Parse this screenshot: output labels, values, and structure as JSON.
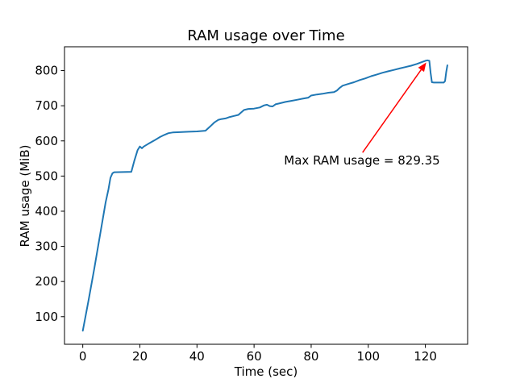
{
  "figure": {
    "background": "#ffffff",
    "spine_color": "#000000",
    "text_color": "#000000"
  },
  "chart_data": {
    "type": "line",
    "title": "RAM usage over Time",
    "xlabel": "Time (sec)",
    "ylabel": "RAM usage (MiB)",
    "xticks": [
      0,
      20,
      40,
      60,
      80,
      100,
      120
    ],
    "yticks": [
      100,
      200,
      300,
      400,
      500,
      600,
      700,
      800
    ],
    "xlim": [
      -6.4,
      134.8
    ],
    "ylim": [
      21.5,
      867.8
    ],
    "grid": false,
    "legend": null,
    "max_value": 829.35,
    "series": [
      {
        "name": "RAM usage",
        "color": "#1f77b4",
        "points": [
          [
            0,
            60
          ],
          [
            2,
            145
          ],
          [
            4,
            235
          ],
          [
            6,
            330
          ],
          [
            8,
            425
          ],
          [
            9,
            462
          ],
          [
            9.7,
            495
          ],
          [
            10.4,
            508
          ],
          [
            11,
            511
          ],
          [
            17,
            512
          ],
          [
            18,
            542
          ],
          [
            19.2,
            574
          ],
          [
            20,
            584
          ],
          [
            20.7,
            579
          ],
          [
            21.4,
            584
          ],
          [
            23,
            592
          ],
          [
            25,
            601
          ],
          [
            27,
            611
          ],
          [
            28.5,
            617
          ],
          [
            30,
            622
          ],
          [
            31.5,
            624
          ],
          [
            34,
            625
          ],
          [
            37,
            626
          ],
          [
            40,
            627
          ],
          [
            43,
            629
          ],
          [
            44.5,
            640
          ],
          [
            46,
            652
          ],
          [
            47.5,
            660
          ],
          [
            48.5,
            662
          ],
          [
            50,
            664
          ],
          [
            51.5,
            668
          ],
          [
            53,
            671
          ],
          [
            54.5,
            674
          ],
          [
            55.5,
            681
          ],
          [
            56.5,
            688
          ],
          [
            58,
            691
          ],
          [
            60,
            692
          ],
          [
            62,
            695
          ],
          [
            63.5,
            701
          ],
          [
            64.5,
            703
          ],
          [
            65.5,
            699
          ],
          [
            66.5,
            698
          ],
          [
            67.5,
            704
          ],
          [
            69,
            707
          ],
          [
            71,
            711
          ],
          [
            73,
            714
          ],
          [
            75,
            717
          ],
          [
            77,
            720
          ],
          [
            79,
            723
          ],
          [
            80,
            729
          ],
          [
            82,
            732
          ],
          [
            84,
            734
          ],
          [
            86,
            737
          ],
          [
            88,
            739
          ],
          [
            89,
            743
          ],
          [
            90,
            751
          ],
          [
            91,
            757
          ],
          [
            93,
            762
          ],
          [
            95,
            767
          ],
          [
            97,
            773
          ],
          [
            99,
            778
          ],
          [
            101,
            784
          ],
          [
            103,
            789
          ],
          [
            105,
            794
          ],
          [
            107,
            798
          ],
          [
            109,
            802
          ],
          [
            111,
            806
          ],
          [
            113,
            810
          ],
          [
            115,
            814
          ],
          [
            117,
            819
          ],
          [
            119,
            825
          ],
          [
            120,
            828
          ],
          [
            120.7,
            829.35
          ],
          [
            121.4,
            828
          ],
          [
            121.8,
            795
          ],
          [
            122.3,
            767
          ],
          [
            123,
            766
          ],
          [
            126.4,
            766
          ],
          [
            126.9,
            770
          ],
          [
            127.3,
            795
          ],
          [
            127.7,
            815
          ]
        ]
      }
    ],
    "annotation": {
      "text": "Max RAM usage = 829.35",
      "color": "#ff0000",
      "text_xy": [
        70.5,
        533
      ],
      "arrow_tail_xy": [
        98,
        567
      ],
      "arrow_tip_xy": [
        120.3,
        823
      ]
    }
  }
}
